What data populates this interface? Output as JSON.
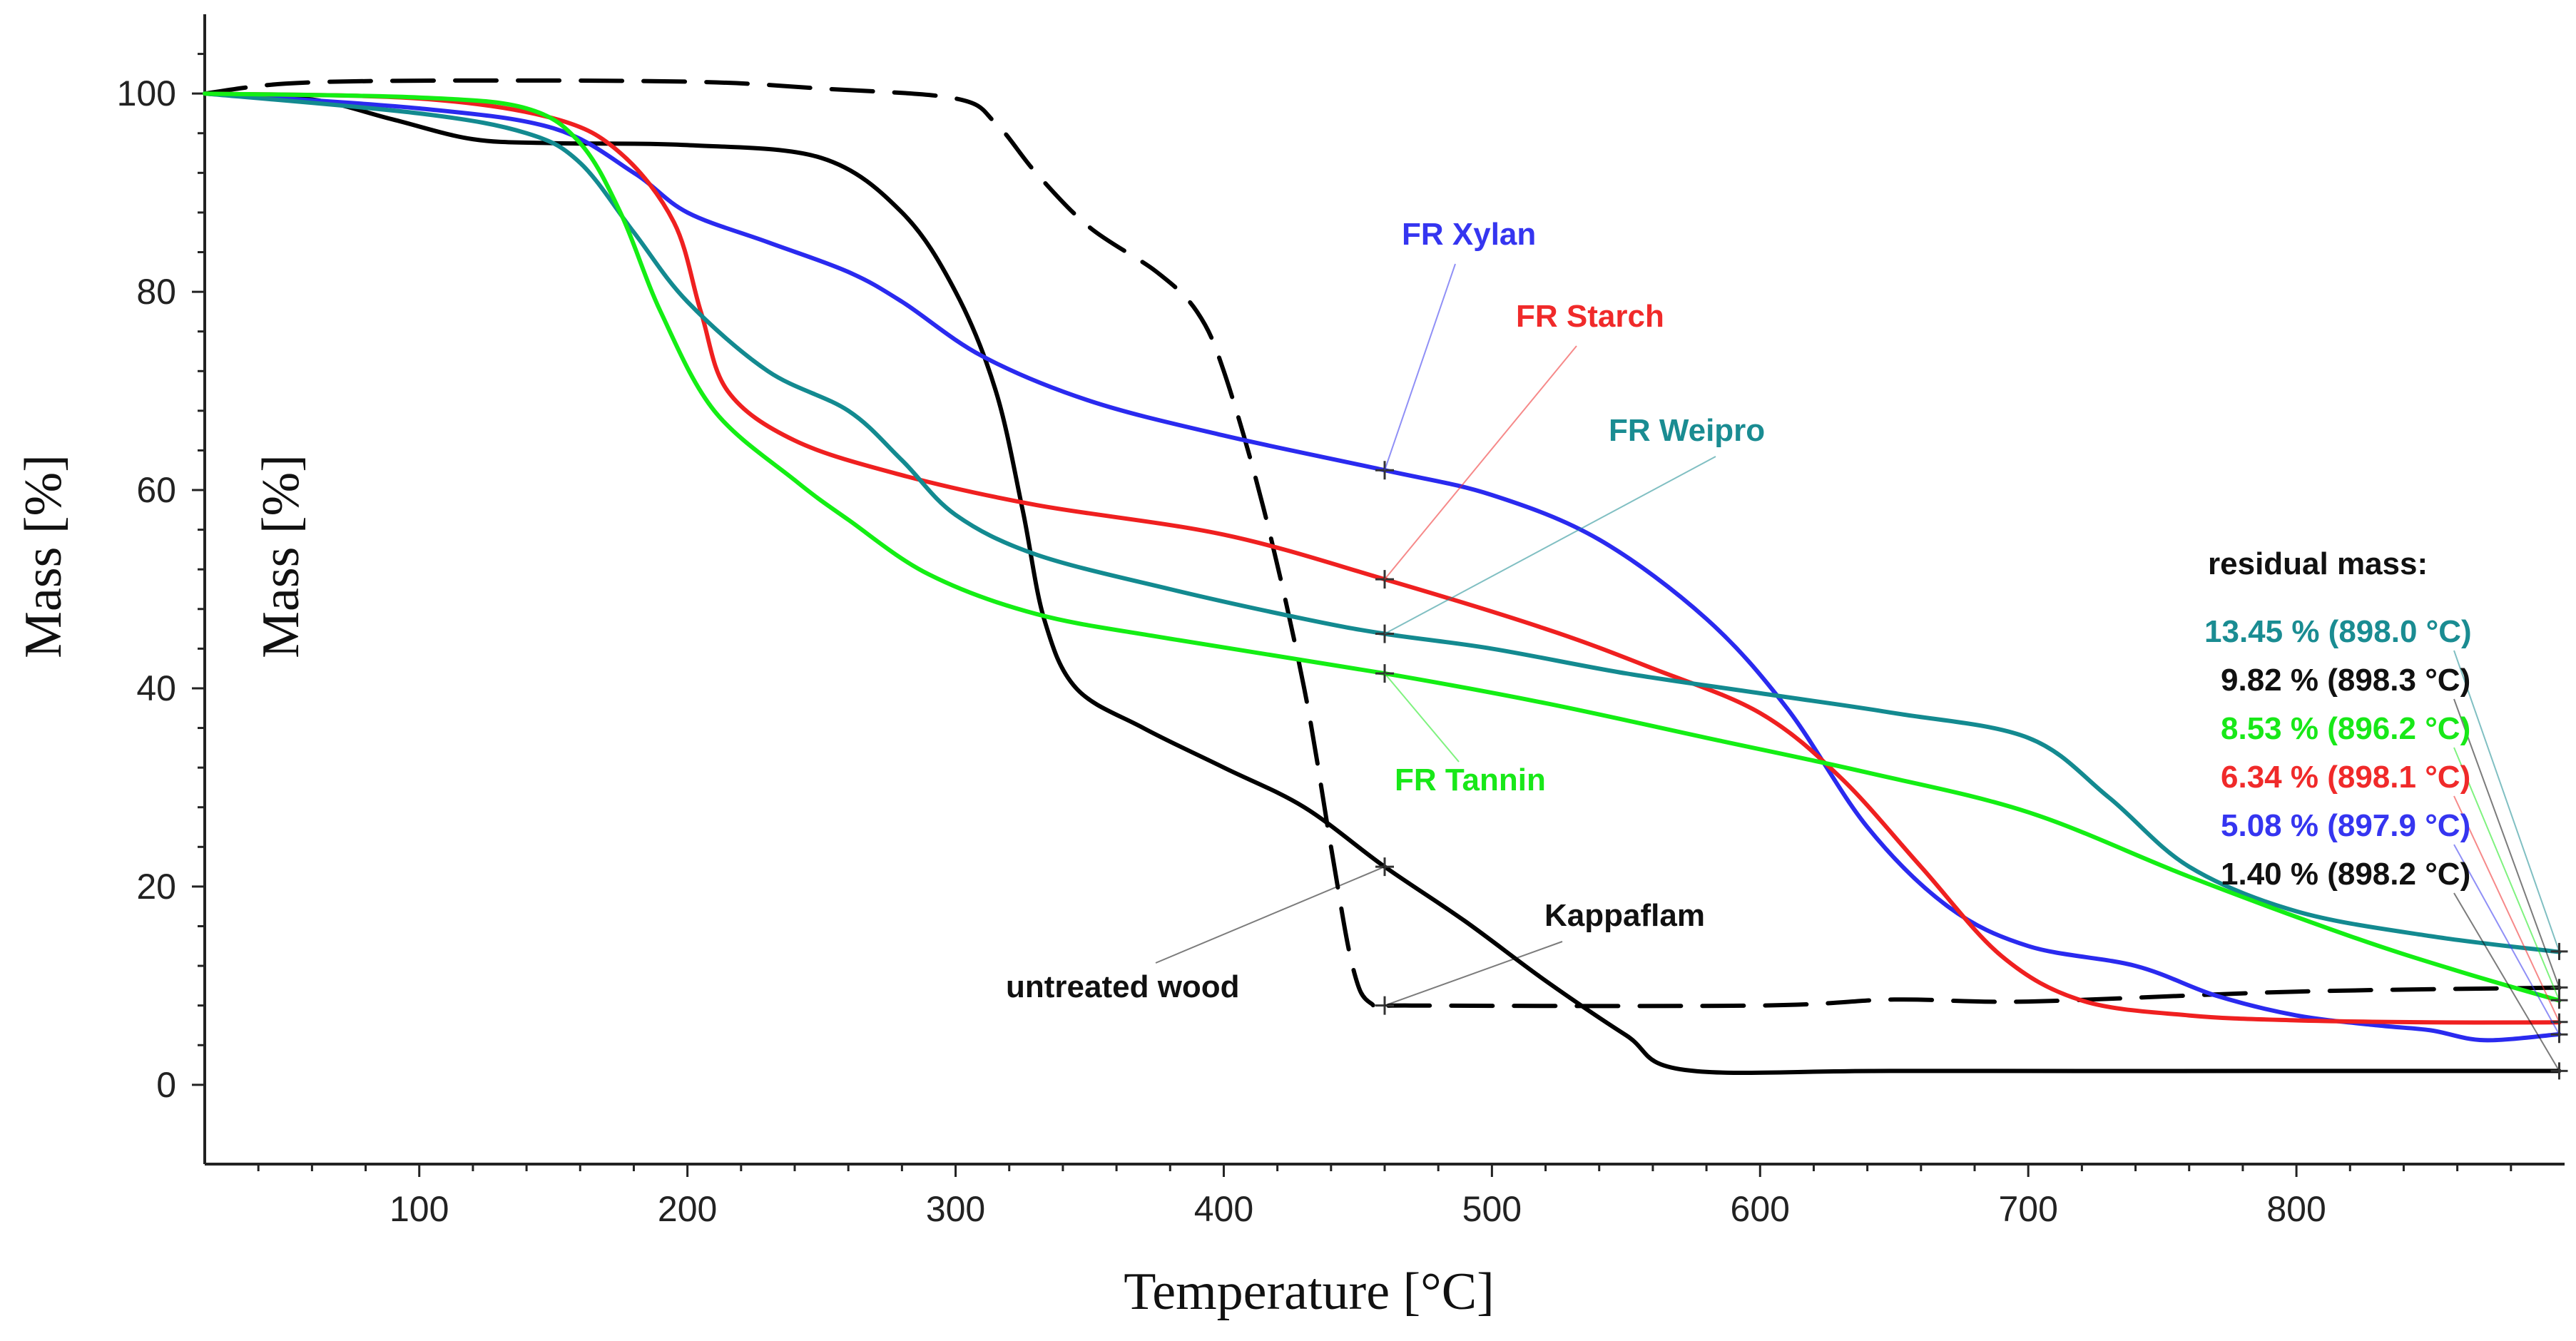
{
  "chart_data": {
    "type": "line",
    "title": "",
    "xlabel": "Temperature [°C]",
    "ylabel": "Mass [%]",
    "ylabel_inner": "Mass [%]",
    "xlim": [
      20,
      900
    ],
    "ylim": [
      -8,
      108
    ],
    "x_ticks": [
      100,
      200,
      300,
      400,
      500,
      600,
      700,
      800
    ],
    "x_tick_labels": [
      "100",
      "200",
      "300",
      "400",
      "500",
      "600",
      "700",
      "800"
    ],
    "y_ticks": [
      0,
      20,
      40,
      60,
      80,
      100
    ],
    "y_tick_labels": [
      "0",
      "20",
      "40",
      "60",
      "80",
      "100"
    ],
    "grid": false,
    "series": [
      {
        "name": "untreated wood",
        "color": "#000000",
        "dash": "solid",
        "points": [
          [
            20,
            100
          ],
          [
            60,
            99.4
          ],
          [
            90,
            97.4
          ],
          [
            120,
            95.4
          ],
          [
            150,
            95
          ],
          [
            200,
            94.8
          ],
          [
            250,
            93.5
          ],
          [
            280,
            88
          ],
          [
            300,
            80
          ],
          [
            315,
            70
          ],
          [
            325,
            58
          ],
          [
            333,
            47
          ],
          [
            345,
            40
          ],
          [
            370,
            36
          ],
          [
            400,
            32
          ],
          [
            430,
            28
          ],
          [
            460,
            22
          ],
          [
            490,
            16.5
          ],
          [
            520,
            10.5
          ],
          [
            550,
            5
          ],
          [
            572,
            1.5
          ],
          [
            650,
            1.4
          ],
          [
            800,
            1.4
          ],
          [
            898,
            1.4
          ]
        ],
        "marker_x": 460,
        "marker_y": 22
      },
      {
        "name": "Kappaflam",
        "color": "#000000",
        "dash": "dashed",
        "points": [
          [
            20,
            100
          ],
          [
            50,
            101
          ],
          [
            100,
            101.3
          ],
          [
            200,
            101.2
          ],
          [
            250,
            100.5
          ],
          [
            300,
            99.5
          ],
          [
            315,
            97
          ],
          [
            330,
            92
          ],
          [
            350,
            86.5
          ],
          [
            375,
            82
          ],
          [
            390,
            78
          ],
          [
            400,
            72
          ],
          [
            415,
            58
          ],
          [
            430,
            40
          ],
          [
            440,
            24
          ],
          [
            448,
            12
          ],
          [
            455,
            8.2
          ],
          [
            470,
            8
          ],
          [
            600,
            8
          ],
          [
            650,
            8.6
          ],
          [
            700,
            8.4
          ],
          [
            800,
            9.4
          ],
          [
            898,
            9.8
          ]
        ],
        "marker_x": 460,
        "marker_y": 8
      },
      {
        "name": "FR Xylan",
        "color": "#2a2aef",
        "dash": "solid",
        "points": [
          [
            20,
            100
          ],
          [
            100,
            98.5
          ],
          [
            150,
            96.5
          ],
          [
            180,
            92
          ],
          [
            200,
            88
          ],
          [
            230,
            85
          ],
          [
            260,
            82
          ],
          [
            280,
            79
          ],
          [
            310,
            73.5
          ],
          [
            350,
            69
          ],
          [
            400,
            65.5
          ],
          [
            460,
            62
          ],
          [
            500,
            59.5
          ],
          [
            540,
            55
          ],
          [
            580,
            47
          ],
          [
            610,
            38
          ],
          [
            640,
            26
          ],
          [
            670,
            18
          ],
          [
            700,
            14
          ],
          [
            740,
            12
          ],
          [
            770,
            9
          ],
          [
            800,
            7
          ],
          [
            830,
            6
          ],
          [
            850,
            5.5
          ],
          [
            870,
            4.5
          ],
          [
            898,
            5.1
          ]
        ],
        "marker_x": 460,
        "marker_y": 62
      },
      {
        "name": "FR Starch",
        "color": "#ef2020",
        "dash": "solid",
        "points": [
          [
            20,
            100
          ],
          [
            100,
            99.5
          ],
          [
            150,
            97.5
          ],
          [
            175,
            94
          ],
          [
            195,
            87
          ],
          [
            205,
            78
          ],
          [
            215,
            70
          ],
          [
            240,
            65
          ],
          [
            280,
            61.5
          ],
          [
            330,
            58.5
          ],
          [
            400,
            55.5
          ],
          [
            460,
            51
          ],
          [
            520,
            46
          ],
          [
            560,
            42
          ],
          [
            600,
            37.5
          ],
          [
            630,
            31
          ],
          [
            660,
            22
          ],
          [
            690,
            13
          ],
          [
            720,
            8.5
          ],
          [
            760,
            7
          ],
          [
            800,
            6.5
          ],
          [
            850,
            6.3
          ],
          [
            898,
            6.3
          ]
        ],
        "marker_x": 460,
        "marker_y": 51
      },
      {
        "name": "FR Weipro",
        "color": "#138a90",
        "dash": "solid",
        "points": [
          [
            20,
            100
          ],
          [
            100,
            98
          ],
          [
            140,
            96
          ],
          [
            160,
            93
          ],
          [
            180,
            86
          ],
          [
            200,
            79
          ],
          [
            230,
            72
          ],
          [
            260,
            68
          ],
          [
            280,
            63
          ],
          [
            300,
            57.5
          ],
          [
            330,
            53.5
          ],
          [
            380,
            50
          ],
          [
            430,
            47
          ],
          [
            460,
            45.5
          ],
          [
            500,
            44
          ],
          [
            550,
            41.5
          ],
          [
            600,
            39.5
          ],
          [
            650,
            37.5
          ],
          [
            700,
            35
          ],
          [
            730,
            29
          ],
          [
            760,
            22
          ],
          [
            800,
            17.5
          ],
          [
            850,
            15
          ],
          [
            898,
            13.4
          ]
        ],
        "marker_x": 460,
        "marker_y": 45.5
      },
      {
        "name": "FR Tannin",
        "color": "#14ee14",
        "dash": "solid",
        "points": [
          [
            20,
            100
          ],
          [
            100,
            99.6
          ],
          [
            140,
            98.5
          ],
          [
            160,
            95
          ],
          [
            175,
            88
          ],
          [
            190,
            78
          ],
          [
            210,
            68
          ],
          [
            240,
            61
          ],
          [
            260,
            57
          ],
          [
            290,
            51.5
          ],
          [
            330,
            47.5
          ],
          [
            380,
            45
          ],
          [
            460,
            41.5
          ],
          [
            520,
            38.5
          ],
          [
            580,
            35
          ],
          [
            640,
            31.5
          ],
          [
            700,
            27.5
          ],
          [
            760,
            21
          ],
          [
            820,
            15
          ],
          [
            860,
            11.5
          ],
          [
            898,
            8.5
          ]
        ],
        "marker_x": 460,
        "marker_y": 41.5
      }
    ],
    "annotations": [
      {
        "text": "FR Xylan",
        "color": "#3535f0",
        "series": "FR Xylan"
      },
      {
        "text": "FR Starch",
        "color": "#f02a2a",
        "series": "FR Starch"
      },
      {
        "text": "FR Weipro",
        "color": "#1a8c92",
        "series": "FR Weipro"
      },
      {
        "text": "FR Tannin",
        "color": "#18e818",
        "series": "FR Tannin"
      },
      {
        "text": "Kappaflam",
        "color": "#111111",
        "series": "Kappaflam"
      },
      {
        "text": "untreated wood",
        "color": "#111111",
        "series": "untreated wood"
      }
    ],
    "residual_mass": {
      "heading": "residual mass:",
      "entries": [
        {
          "value_text": "13.45 %",
          "temp_text": "(898.0 °C)",
          "color": "#1a8c92",
          "series": "FR Weipro",
          "mass": 13.45
        },
        {
          "value_text": "9.82 %",
          "temp_text": "(898.3 °C)",
          "color": "#111111",
          "series": "Kappaflam",
          "mass": 9.82
        },
        {
          "value_text": "8.53 %",
          "temp_text": "(896.2 °C)",
          "color": "#18e818",
          "series": "FR Tannin",
          "mass": 8.53
        },
        {
          "value_text": "6.34 %",
          "temp_text": "(898.1 °C)",
          "color": "#f02a2a",
          "series": "FR Starch",
          "mass": 6.34
        },
        {
          "value_text": "5.08 %",
          "temp_text": "(897.9 °C)",
          "color": "#3535f0",
          "series": "FR Xylan",
          "mass": 5.08
        },
        {
          "value_text": "1.40 %",
          "temp_text": "(898.2 °C)",
          "color": "#111111",
          "series": "untreated wood",
          "mass": 1.4
        }
      ]
    }
  }
}
